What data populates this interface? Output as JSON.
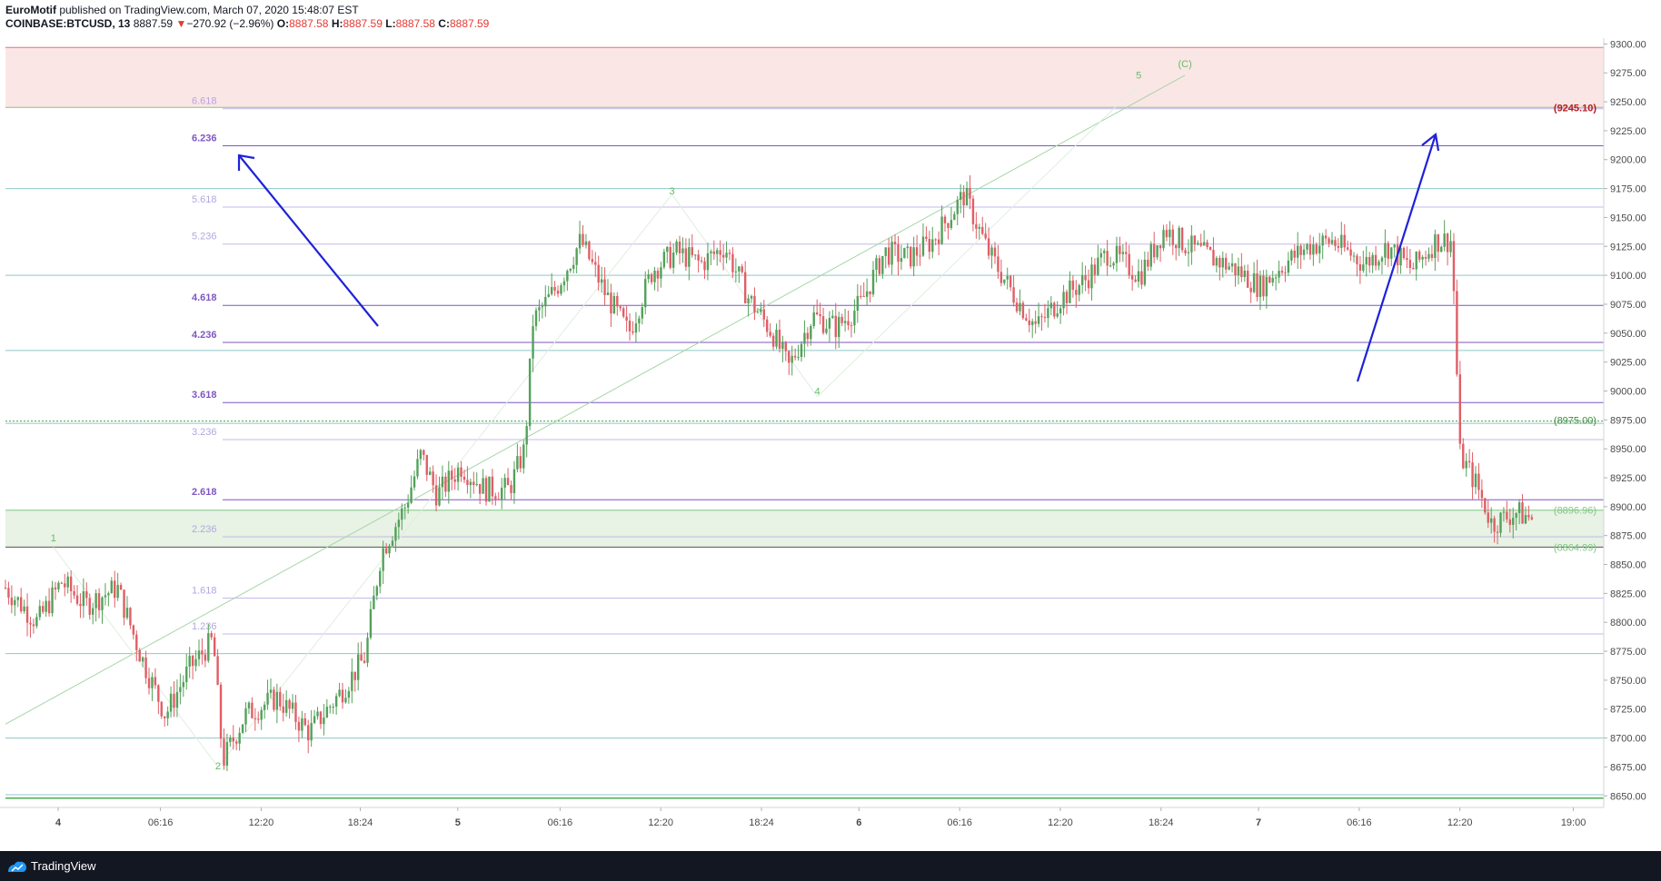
{
  "header": {
    "author": "EuroMotif",
    "published_text": " published on TradingView.com, March 07, 2020 15:48:07 EST",
    "symbol": "COINBASE:BTCUSD, 13",
    "last_price": "8887.59",
    "change": "−270.92 (−2.96%)",
    "o_label": "O:",
    "o_value": "8887.58",
    "h_label": "H:",
    "h_value": "8887.59",
    "l_label": "L:",
    "l_value": "8887.58",
    "c_label": "C:",
    "c_value": "8887.59"
  },
  "footer": {
    "brand": "TradingView"
  },
  "chart_data": {
    "type": "candlestick",
    "y_range": [
      8640,
      9305
    ],
    "y_ticks": [
      "9300.00",
      "9275.00",
      "9250.00",
      "9225.00",
      "9200.00",
      "9175.00",
      "9150.00",
      "9125.00",
      "9100.00",
      "9075.00",
      "9050.00",
      "9025.00",
      "9000.00",
      "8975.00",
      "8950.00",
      "8925.00",
      "8900.00",
      "8875.00",
      "8850.00",
      "8825.00",
      "8800.00",
      "8775.00",
      "8750.00",
      "8725.00",
      "8700.00",
      "8675.00",
      "8650.00"
    ],
    "x_ticks": [
      {
        "label": "4",
        "bold": true,
        "pos": 0.033
      },
      {
        "label": "06:16",
        "bold": false,
        "pos": 0.097
      },
      {
        "label": "12:20",
        "bold": false,
        "pos": 0.16
      },
      {
        "label": "18:24",
        "bold": false,
        "pos": 0.222
      },
      {
        "label": "5",
        "bold": true,
        "pos": 0.283
      },
      {
        "label": "06:16",
        "bold": false,
        "pos": 0.347
      },
      {
        "label": "12:20",
        "bold": false,
        "pos": 0.41
      },
      {
        "label": "18:24",
        "bold": false,
        "pos": 0.473
      },
      {
        "label": "6",
        "bold": true,
        "pos": 0.534
      },
      {
        "label": "06:16",
        "bold": false,
        "pos": 0.597
      },
      {
        "label": "12:20",
        "bold": false,
        "pos": 0.66
      },
      {
        "label": "18:24",
        "bold": false,
        "pos": 0.723
      },
      {
        "label": "7",
        "bold": true,
        "pos": 0.784
      },
      {
        "label": "06:16",
        "bold": false,
        "pos": 0.847
      },
      {
        "label": "12:20",
        "bold": false,
        "pos": 0.91
      },
      {
        "label": "19:00",
        "bold": false,
        "pos": 0.981
      }
    ],
    "fib_levels": [
      {
        "label": "6.618",
        "value": 9244,
        "bold": false
      },
      {
        "label": "6.236",
        "value": 9212,
        "bold": true
      },
      {
        "label": "5.618",
        "value": 9159,
        "bold": false
      },
      {
        "label": "5.236",
        "value": 9127,
        "bold": false
      },
      {
        "label": "4.618",
        "value": 9074,
        "bold": true
      },
      {
        "label": "4.236",
        "value": 9042,
        "bold": true
      },
      {
        "label": "3.618",
        "value": 8990,
        "bold": true
      },
      {
        "label": "3.236",
        "value": 8958,
        "bold": false
      },
      {
        "label": "2.618",
        "value": 8906,
        "bold": true
      },
      {
        "label": "2.236",
        "value": 8874,
        "bold": false
      },
      {
        "label": "1.618",
        "value": 8821,
        "bold": false
      },
      {
        "label": "1.236",
        "value": 8790,
        "bold": false
      }
    ],
    "zones": [
      {
        "from": 9245.1,
        "to": 9297,
        "color": "#fbe6e6"
      },
      {
        "from": 8864.99,
        "to": 8896.96,
        "color": "#e8f2e5"
      }
    ],
    "price_tags": [
      {
        "label": "(9245.10)",
        "value": 9245.1,
        "color": "#b71c1c"
      },
      {
        "label": "(8975.00)",
        "value": 8975,
        "color": "#388e3c"
      },
      {
        "label": "(8896.96)",
        "value": 8896.96,
        "color": "#81c784"
      },
      {
        "label": "(8864.99)",
        "value": 8864.99,
        "color": "#81c784"
      }
    ],
    "wave_labels": [
      {
        "label": "1",
        "pos": 0.03,
        "value": 8870
      },
      {
        "label": "2",
        "pos": 0.133,
        "value": 8673
      },
      {
        "label": "3",
        "pos": 0.417,
        "value": 9170
      },
      {
        "label": "4",
        "pos": 0.508,
        "value": 8997
      },
      {
        "label": "5",
        "pos": 0.709,
        "value": 9270
      },
      {
        "label": "(C)",
        "pos": 0.738,
        "value": 9280
      }
    ],
    "price_path": [
      [
        0.0,
        8830
      ],
      [
        0.02,
        8800
      ],
      [
        0.035,
        8835
      ],
      [
        0.05,
        8815
      ],
      [
        0.07,
        8830
      ],
      [
        0.085,
        8770
      ],
      [
        0.1,
        8720
      ],
      [
        0.115,
        8760
      ],
      [
        0.13,
        8785
      ],
      [
        0.136,
        8680
      ],
      [
        0.15,
        8720
      ],
      [
        0.17,
        8735
      ],
      [
        0.19,
        8705
      ],
      [
        0.21,
        8740
      ],
      [
        0.225,
        8770
      ],
      [
        0.235,
        8860
      ],
      [
        0.25,
        8900
      ],
      [
        0.26,
        8945
      ],
      [
        0.27,
        8910
      ],
      [
        0.285,
        8935
      ],
      [
        0.3,
        8915
      ],
      [
        0.315,
        8915
      ],
      [
        0.325,
        8950
      ],
      [
        0.33,
        9060
      ],
      [
        0.345,
        9090
      ],
      [
        0.36,
        9130
      ],
      [
        0.375,
        9085
      ],
      [
        0.39,
        9050
      ],
      [
        0.405,
        9105
      ],
      [
        0.42,
        9120
      ],
      [
        0.435,
        9110
      ],
      [
        0.45,
        9125
      ],
      [
        0.465,
        9080
      ],
      [
        0.48,
        9050
      ],
      [
        0.49,
        9020
      ],
      [
        0.505,
        9065
      ],
      [
        0.52,
        9055
      ],
      [
        0.535,
        9075
      ],
      [
        0.55,
        9120
      ],
      [
        0.565,
        9115
      ],
      [
        0.58,
        9130
      ],
      [
        0.6,
        9170
      ],
      [
        0.615,
        9120
      ],
      [
        0.63,
        9085
      ],
      [
        0.645,
        9055
      ],
      [
        0.66,
        9080
      ],
      [
        0.675,
        9095
      ],
      [
        0.69,
        9120
      ],
      [
        0.71,
        9100
      ],
      [
        0.725,
        9140
      ],
      [
        0.74,
        9125
      ],
      [
        0.755,
        9115
      ],
      [
        0.77,
        9105
      ],
      [
        0.785,
        9090
      ],
      [
        0.8,
        9110
      ],
      [
        0.815,
        9125
      ],
      [
        0.83,
        9130
      ],
      [
        0.85,
        9110
      ],
      [
        0.865,
        9125
      ],
      [
        0.88,
        9105
      ],
      [
        0.895,
        9130
      ],
      [
        0.905,
        9130
      ],
      [
        0.91,
        8945
      ],
      [
        0.92,
        8920
      ],
      [
        0.93,
        8885
      ],
      [
        0.945,
        8895
      ],
      [
        0.955,
        8890
      ]
    ]
  }
}
